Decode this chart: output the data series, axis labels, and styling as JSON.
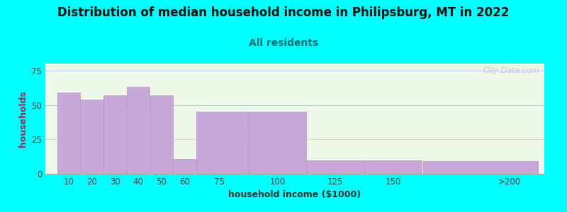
{
  "title": "Distribution of median household income in Philipsburg, MT in 2022",
  "subtitle": "All residents",
  "xlabel": "household income ($1000)",
  "ylabel": "households",
  "title_fontsize": 12,
  "subtitle_fontsize": 10,
  "label_fontsize": 9,
  "tick_fontsize": 8.5,
  "bar_color": "#c8a8d8",
  "bar_edge_color": "#b090c0",
  "background_color": "#00ffff",
  "plot_bg_color": "#eef8e8",
  "values": [
    59,
    54,
    57,
    63,
    57,
    11,
    45,
    45,
    10,
    10,
    9
  ],
  "bar_lefts": [
    5,
    15,
    25,
    35,
    45,
    55,
    65,
    87.5,
    112.5,
    137.5,
    162.5
  ],
  "bar_widths": [
    10,
    10,
    10,
    10,
    10,
    10,
    22.5,
    25,
    25,
    25,
    50
  ],
  "xlim": [
    0,
    215
  ],
  "ylim": [
    0,
    80
  ],
  "yticks": [
    0,
    25,
    50,
    75
  ],
  "xtick_positions": [
    10,
    20,
    30,
    40,
    50,
    60,
    75,
    100,
    125,
    150,
    200
  ],
  "xtick_labels": [
    "10",
    "20",
    "30",
    "40",
    "50",
    "60",
    "75",
    "100",
    "125",
    "150",
    ">200"
  ],
  "watermark": "City-Data.com",
  "title_color": "#111111",
  "subtitle_color": "#007070",
  "ylabel_color": "#903060",
  "xlabel_color": "#333333",
  "tick_color": "#444444",
  "grid_color": "#d8c8e8",
  "pink_line_y": 50,
  "pink_line_color": "#e8a0b0"
}
